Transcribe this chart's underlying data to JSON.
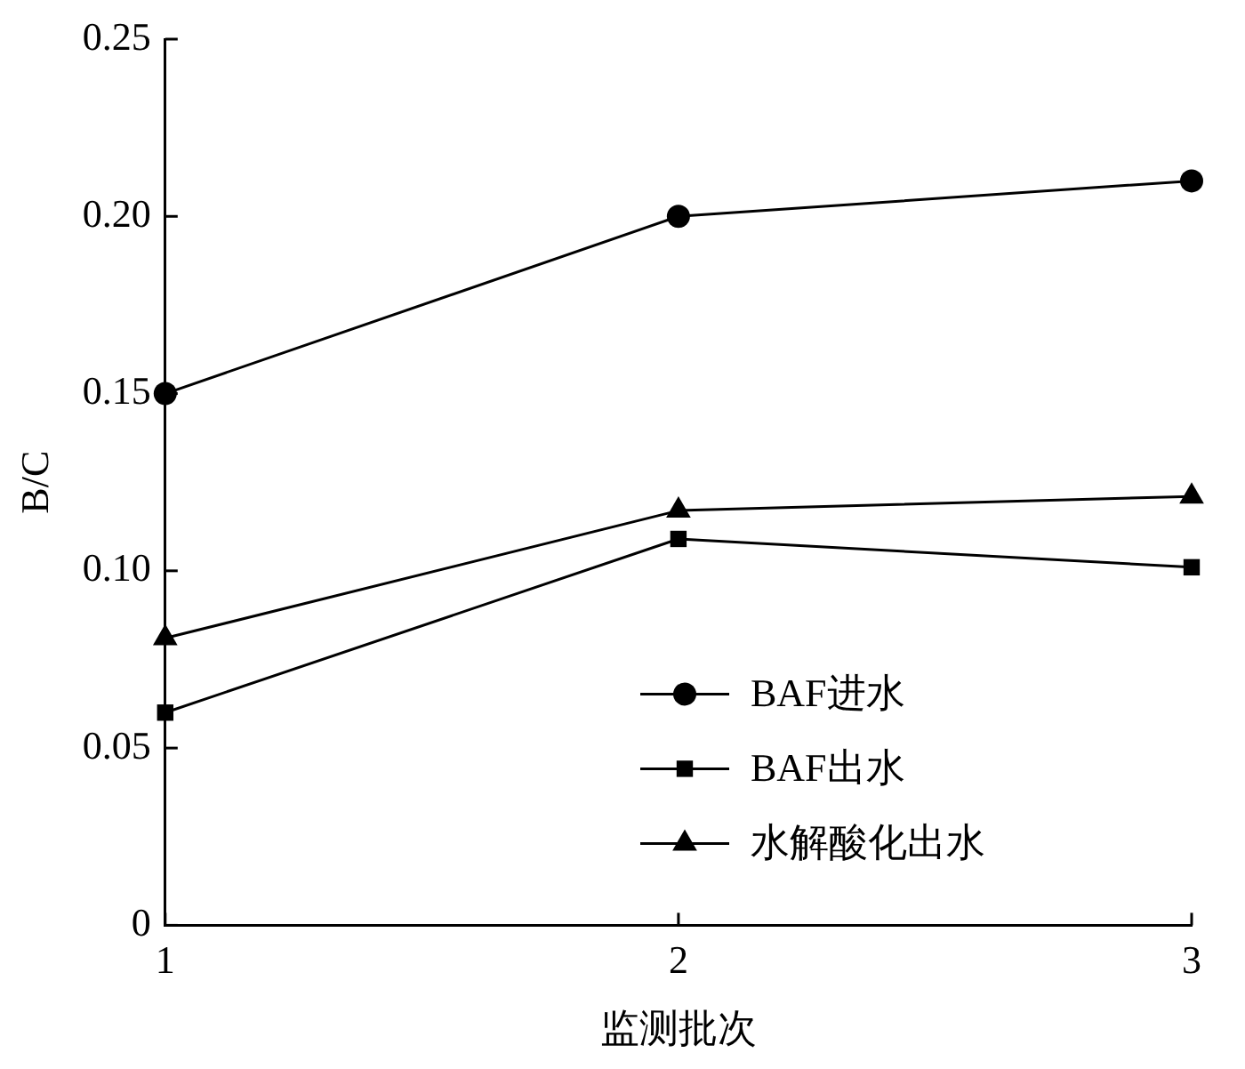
{
  "chart_data": {
    "type": "line",
    "xlabel": "监测批次",
    "ylabel": "B/C",
    "x": [
      1,
      2,
      3
    ],
    "xlim": [
      1,
      3
    ],
    "xticks": [
      1,
      2,
      3
    ],
    "ylim": [
      0,
      0.25
    ],
    "yticks": [
      0,
      0.05,
      {
        "value": 0.1,
        "label": "0.10"
      },
      0.15,
      {
        "value": 0.2,
        "label": "0.20"
      },
      0.25
    ],
    "grid": false,
    "legend": "bottom right",
    "line_style": "solid",
    "series": [
      {
        "name": "BAF进水",
        "color": "#000000",
        "marker": "circle",
        "values": [
          0.15,
          0.2,
          0.21
        ]
      },
      {
        "name": "BAF出水",
        "color": "#000000",
        "marker": "square",
        "values": [
          0.06,
          0.109,
          0.101
        ]
      },
      {
        "name": "水解酸化出水",
        "color": "#000000",
        "marker": "triangle",
        "values": [
          0.081,
          0.117,
          0.121
        ]
      }
    ]
  }
}
